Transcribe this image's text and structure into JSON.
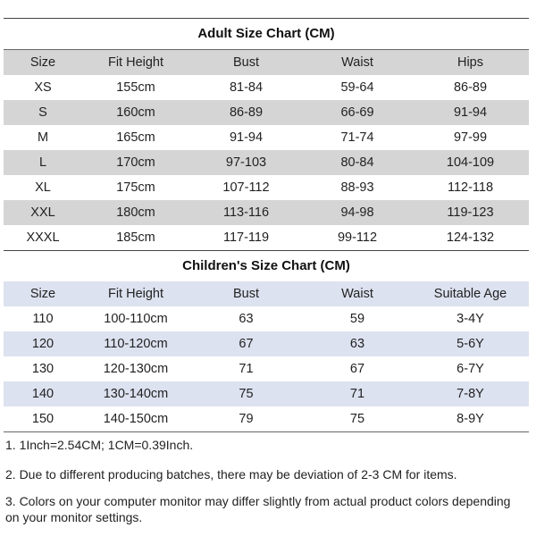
{
  "adult": {
    "title": "Adult Size Chart (CM)",
    "headers": [
      "Size",
      "Fit Height",
      "Bust",
      "Waist",
      "Hips"
    ],
    "rows": [
      [
        "XS",
        "155cm",
        "81-84",
        "59-64",
        "86-89"
      ],
      [
        "S",
        "160cm",
        "86-89",
        "66-69",
        "91-94"
      ],
      [
        "M",
        "165cm",
        "91-94",
        "71-74",
        "97-99"
      ],
      [
        "L",
        "170cm",
        "97-103",
        "80-84",
        "104-109"
      ],
      [
        "XL",
        "175cm",
        "107-112",
        "88-93",
        "112-118"
      ],
      [
        "XXL",
        "180cm",
        "113-116",
        "94-98",
        "119-123"
      ],
      [
        "XXXL",
        "185cm",
        "117-119",
        "99-112",
        "124-132"
      ]
    ]
  },
  "children": {
    "title": "Children's Size Chart (CM)",
    "headers": [
      "Size",
      "Fit Height",
      "Bust",
      "Waist",
      "Suitable Age"
    ],
    "rows": [
      [
        "110",
        "100-110cm",
        "63",
        "59",
        "3-4Y"
      ],
      [
        "120",
        "110-120cm",
        "67",
        "63",
        "5-6Y"
      ],
      [
        "130",
        "120-130cm",
        "71",
        "67",
        "6-7Y"
      ],
      [
        "140",
        "130-140cm",
        "75",
        "71",
        "7-8Y"
      ],
      [
        "150",
        "140-150cm",
        "79",
        "75",
        "8-9Y"
      ]
    ]
  },
  "notes": [
    "1. 1Inch=2.54CM; 1CM=0.39Inch.",
    "2. Due to different producing batches, there may be deviation of 2-3 CM for items.",
    "3. Colors on your computer monitor may differ slightly from actual product colors depending on your monitor settings."
  ],
  "colors": {
    "adult_shade": "#d5d5d5",
    "children_shade": "#dde2f0"
  }
}
